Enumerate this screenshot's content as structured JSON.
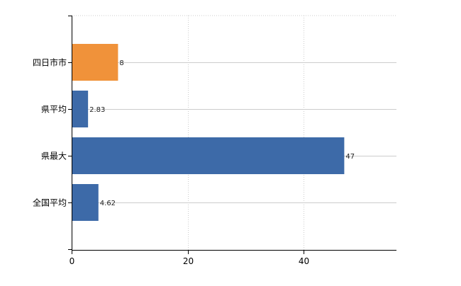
{
  "chart_data": {
    "type": "bar",
    "orientation": "horizontal",
    "categories": [
      "四日市市",
      "県平均",
      "県最大",
      "全国平均"
    ],
    "values": [
      8,
      2.83,
      47,
      4.62
    ],
    "data_labels": [
      "8",
      "2.83",
      "47",
      "4.62"
    ],
    "bar_colors": [
      "#f0923a",
      "#3d6aa8",
      "#3d6aa8",
      "#3d6aa8"
    ],
    "xlim": [
      0,
      56
    ],
    "x_ticks": [
      0,
      20,
      40
    ],
    "grid": true,
    "legend": "none",
    "title": "",
    "xlabel": "",
    "ylabel": ""
  },
  "colors": {
    "highlight": "#f0923a",
    "default_bar": "#3d6aa8",
    "grid": "#cccccc",
    "axis": "#000000"
  }
}
